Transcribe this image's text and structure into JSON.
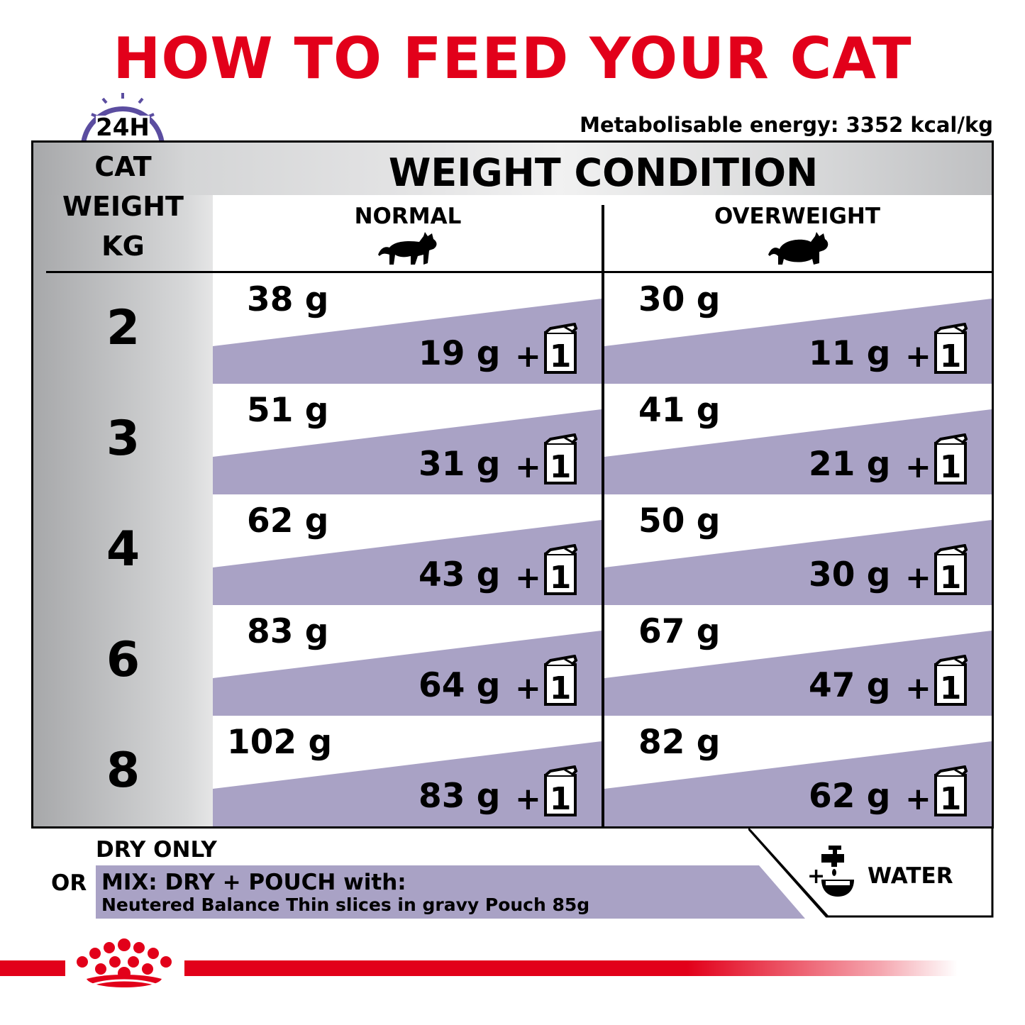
{
  "title": "HOW TO FEED YOUR CAT",
  "energy": "Metabolisable energy: 3352 kcal/kg",
  "clock_label": "24H",
  "table": {
    "header": "WEIGHT CONDITION",
    "weight_col_lines": [
      "CAT",
      "WEIGHT",
      "KG"
    ],
    "columns": [
      "NORMAL",
      "OVERWEIGHT"
    ],
    "pouch_count": "1",
    "plus": "+",
    "rows": [
      {
        "weight": "2",
        "normal_dry": "38 g",
        "normal_mix": "19 g",
        "over_dry": "30 g",
        "over_mix": "11 g"
      },
      {
        "weight": "3",
        "normal_dry": "51 g",
        "normal_mix": "31 g",
        "over_dry": "41 g",
        "over_mix": "21 g"
      },
      {
        "weight": "4",
        "normal_dry": "62 g",
        "normal_mix": "43 g",
        "over_dry": "50 g",
        "over_mix": "30 g"
      },
      {
        "weight": "6",
        "normal_dry": "83 g",
        "normal_mix": "64 g",
        "over_dry": "67 g",
        "over_mix": "47 g"
      },
      {
        "weight": "8",
        "normal_dry": "102 g",
        "normal_mix": "83 g",
        "over_dry": "82 g",
        "over_mix": "62 g"
      }
    ]
  },
  "legend": {
    "dry_only": "DRY ONLY",
    "or": "OR",
    "mix_line1": "MIX: DRY + POUCH with:",
    "mix_line2": "Neutered Balance Thin slices in gravy Pouch 85g",
    "water_plus": "+",
    "water": "WATER"
  },
  "colors": {
    "brand_red": "#e2001a",
    "purple_band": "#a9a2c5",
    "clock_purple": "#5b4da0"
  },
  "icons": [
    "clock-24h-icon",
    "cat-normal-icon",
    "cat-overweight-icon",
    "pouch-icon",
    "water-tap-bowl-icon",
    "royal-canin-crown-logo"
  ]
}
